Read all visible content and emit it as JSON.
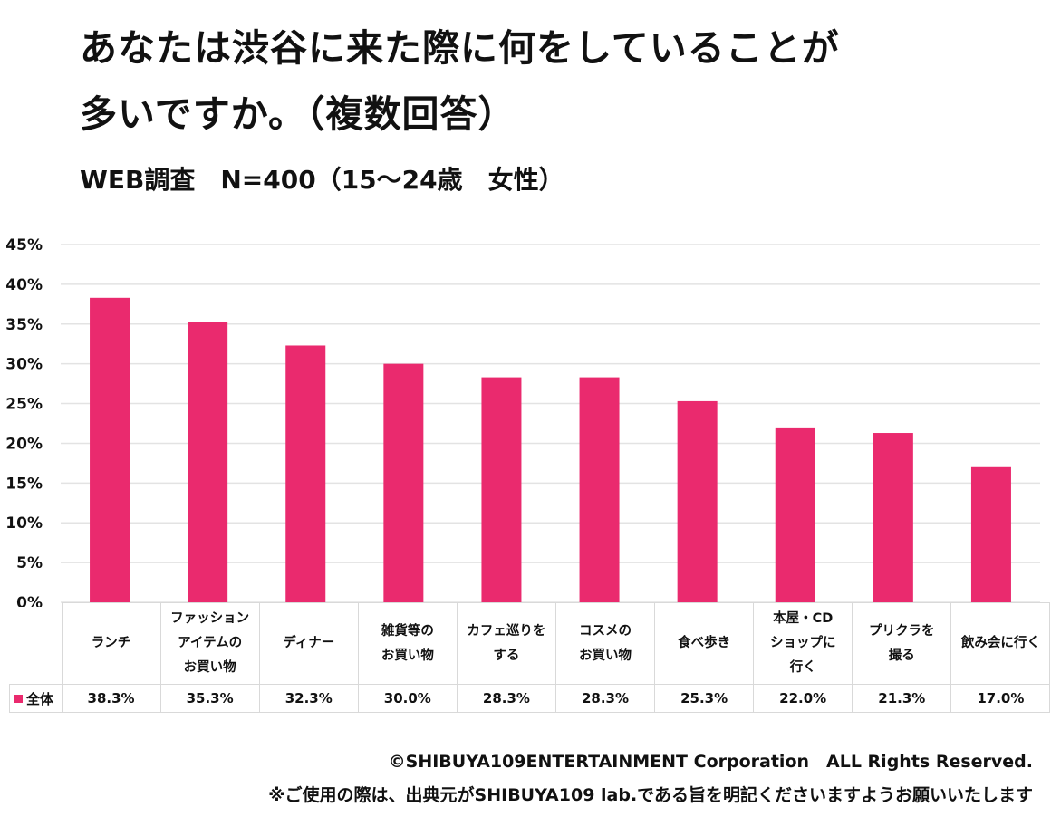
{
  "title_line1": "あなたは渋谷に来た際に何をしていることが",
  "title_line2": "多いですか。（複数回答）",
  "subtitle": "WEB調査　N=400（15〜24歳　女性）",
  "footer": {
    "copyright": "©SHIBUYA109ENTERTAINMENT Corporation　ALL Rights Reserved.",
    "notice": "※ご使用の際は、出典元がSHIBUYA109 lab.である旨を明記くださいますようお願いいたします"
  },
  "chart_data": {
    "type": "bar",
    "title": "あなたは渋谷に来た際に何をしていることが多いですか。（複数回答）",
    "subtitle": "WEB調査　N=400（15〜24歳　女性）",
    "xlabel": "",
    "ylabel": "",
    "ylim": [
      0,
      45
    ],
    "yticks": [
      0,
      5,
      10,
      15,
      20,
      25,
      30,
      35,
      40,
      45
    ],
    "ytick_labels": [
      "0%",
      "5%",
      "10%",
      "15%",
      "20%",
      "25%",
      "30%",
      "35%",
      "40%",
      "45%"
    ],
    "grid": true,
    "legend": "data-table-left",
    "categories": [
      "ランチ",
      "ファッションアイテムのお買い物",
      "ディナー",
      "雑貨等のお買い物",
      "カフェ巡りをする",
      "コスメのお買い物",
      "食べ歩き",
      "本屋・CDショップに行く",
      "プリクラを撮る",
      "飲み会に行く"
    ],
    "category_lines": [
      [
        "ランチ"
      ],
      [
        "ファッション",
        "アイテムの",
        "お買い物"
      ],
      [
        "ディナー"
      ],
      [
        "雑貨等の",
        "お買い物"
      ],
      [
        "カフェ巡りを",
        "する"
      ],
      [
        "コスメの",
        "お買い物"
      ],
      [
        "食べ歩き"
      ],
      [
        "本屋・CD",
        "ショップに",
        "行く"
      ],
      [
        "プリクラを",
        "撮る"
      ],
      [
        "飲み会に行く"
      ]
    ],
    "series": [
      {
        "name": "全体",
        "color": "#ea2a6e",
        "values": [
          38.3,
          35.3,
          32.3,
          30.0,
          28.3,
          28.3,
          25.3,
          22.0,
          21.3,
          17.0
        ],
        "value_labels": [
          "38.3%",
          "35.3%",
          "32.3%",
          "30.0%",
          "28.3%",
          "28.3%",
          "25.3%",
          "22.0%",
          "21.3%",
          "17.0%"
        ]
      }
    ]
  }
}
